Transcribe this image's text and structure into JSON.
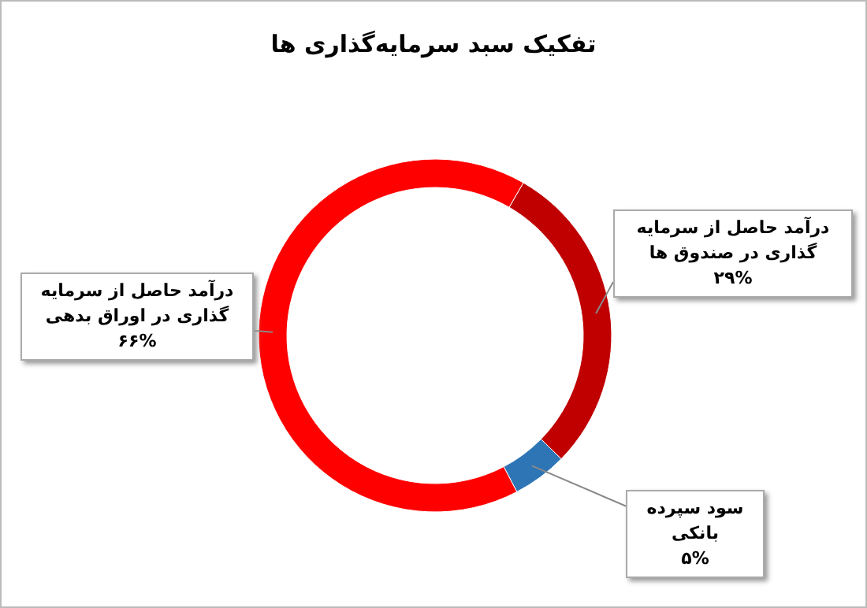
{
  "chart_data": {
    "type": "donut",
    "title": "تفکیک سبد سرمایه‌گذاری ها",
    "categories": [
      "درآمد حاصل از سرمایه گذاری در صندوق ها",
      "سود سپرده بانکی",
      "درآمد حاصل از سرمایه گذاری در اوراق بدهی"
    ],
    "values": [
      29,
      5,
      66
    ],
    "value_labels": [
      "۲۹%",
      "۵%",
      "۶۶%"
    ],
    "colors": [
      "#c00000",
      "#2e75b6",
      "#ff0000"
    ]
  }
}
